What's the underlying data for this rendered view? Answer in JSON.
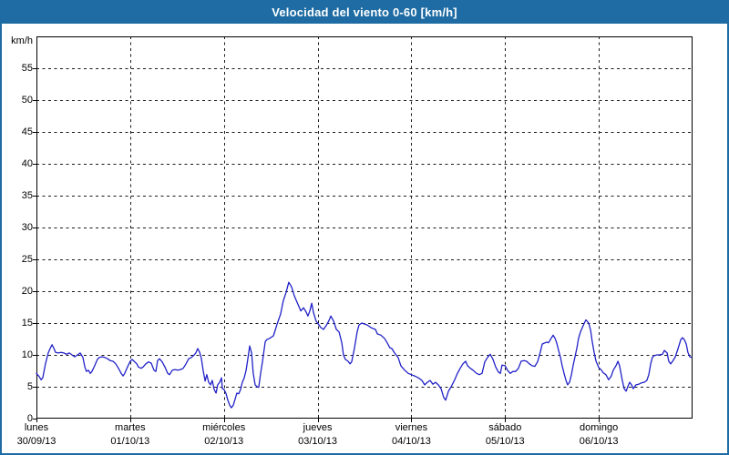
{
  "window": {
    "title": "Velocidad del viento 0-60 [km/h]"
  },
  "colors": {
    "titlebar_bg": "#1e6ca3",
    "window_border": "#1e6ca3",
    "background": "#ffffff",
    "grid": "#1a1a1a",
    "axis_text": "#000000",
    "series_line": "#2121c8"
  },
  "chart_data": {
    "type": "line",
    "title": "Velocidad del viento 0-60 [km/h]",
    "xlabel": "",
    "ylabel": "km/h",
    "ylim": [
      0,
      60
    ],
    "xlim_hours": [
      0,
      168
    ],
    "grid": "dashed",
    "legend_position": "none",
    "y_ticks": [
      0,
      5,
      10,
      15,
      20,
      25,
      30,
      35,
      40,
      45,
      50,
      55
    ],
    "x_ticks_days": [
      {
        "day": "lunes",
        "date": "30/09/13",
        "hour": 0
      },
      {
        "day": "martes",
        "date": "01/10/13",
        "hour": 24
      },
      {
        "day": "miércoles",
        "date": "02/10/13",
        "hour": 48
      },
      {
        "day": "jueves",
        "date": "03/10/13",
        "hour": 72
      },
      {
        "day": "viernes",
        "date": "04/10/13",
        "hour": 96
      },
      {
        "day": "sábado",
        "date": "05/10/13",
        "hour": 120
      },
      {
        "day": "domingo",
        "date": "06/10/13",
        "hour": 144
      }
    ],
    "series": [
      {
        "name": "velocidad del viento",
        "color": "#2121c8",
        "points": [
          [
            0,
            7.1
          ],
          [
            0.7,
            6.6
          ],
          [
            1.2,
            6.1
          ],
          [
            1.6,
            6.4
          ],
          [
            2.3,
            8.6
          ],
          [
            3,
            10.3
          ],
          [
            3.5,
            11
          ],
          [
            4,
            11.6
          ],
          [
            4.4,
            11.1
          ],
          [
            4.9,
            10.4
          ],
          [
            5.6,
            10.3
          ],
          [
            6.3,
            10.4
          ],
          [
            7,
            10.3
          ],
          [
            7.7,
            10.1
          ],
          [
            8.4,
            10.3
          ],
          [
            9.1,
            10
          ],
          [
            9.8,
            9.7
          ],
          [
            10.5,
            10
          ],
          [
            11.2,
            10.3
          ],
          [
            11.9,
            9.6
          ],
          [
            12.4,
            8.1
          ],
          [
            12.8,
            7.4
          ],
          [
            13.3,
            7.6
          ],
          [
            13.8,
            7.1
          ],
          [
            14.2,
            7.4
          ],
          [
            14.9,
            8.3
          ],
          [
            15.6,
            9.3
          ],
          [
            16.1,
            9.6
          ],
          [
            16.8,
            9.7
          ],
          [
            17.5,
            9.6
          ],
          [
            18.2,
            9.4
          ],
          [
            18.9,
            9.1
          ],
          [
            19.6,
            9
          ],
          [
            20.3,
            8.6
          ],
          [
            21,
            7.9
          ],
          [
            21.7,
            7.1
          ],
          [
            22.2,
            6.7
          ],
          [
            22.6,
            7.1
          ],
          [
            23.3,
            8.1
          ],
          [
            24,
            9
          ],
          [
            24.5,
            9.3
          ],
          [
            25,
            9
          ],
          [
            25.7,
            8.6
          ],
          [
            26.1,
            8.1
          ],
          [
            26.8,
            7.9
          ],
          [
            27.3,
            8.1
          ],
          [
            28,
            8.6
          ],
          [
            28.7,
            8.9
          ],
          [
            29.4,
            8.7
          ],
          [
            30.1,
            7.6
          ],
          [
            30.6,
            7.4
          ],
          [
            31,
            9.1
          ],
          [
            31.5,
            9.4
          ],
          [
            32.2,
            8.9
          ],
          [
            32.9,
            8.1
          ],
          [
            33.6,
            7.1
          ],
          [
            34.1,
            6.9
          ],
          [
            34.8,
            7.6
          ],
          [
            35.5,
            7.7
          ],
          [
            36.2,
            7.6
          ],
          [
            36.9,
            7.7
          ],
          [
            37.6,
            7.9
          ],
          [
            38.3,
            8.6
          ],
          [
            39,
            9.4
          ],
          [
            39.7,
            9.6
          ],
          [
            40.4,
            10
          ],
          [
            40.8,
            10.3
          ],
          [
            41.3,
            11
          ],
          [
            41.8,
            10.4
          ],
          [
            42.2,
            9.5
          ],
          [
            42.7,
            7.5
          ],
          [
            43.2,
            5.9
          ],
          [
            43.6,
            6.9
          ],
          [
            44.1,
            5.7
          ],
          [
            44.6,
            5.3
          ],
          [
            45,
            6
          ],
          [
            45.5,
            4.6
          ],
          [
            46,
            4
          ],
          [
            46.4,
            5.3
          ],
          [
            46.9,
            5.7
          ],
          [
            47.4,
            6.4
          ],
          [
            47.6,
            4.7
          ],
          [
            48,
            4.6
          ],
          [
            48.5,
            4
          ],
          [
            49,
            2.9
          ],
          [
            49.5,
            2.1
          ],
          [
            49.9,
            1.7
          ],
          [
            50.4,
            2.1
          ],
          [
            50.9,
            3.1
          ],
          [
            51.3,
            4
          ],
          [
            51.8,
            3.9
          ],
          [
            52.3,
            4.6
          ],
          [
            52.7,
            5.7
          ],
          [
            53.2,
            6.4
          ],
          [
            53.7,
            7.6
          ],
          [
            54.1,
            9.3
          ],
          [
            54.6,
            11.4
          ],
          [
            55.1,
            10.3
          ],
          [
            55.5,
            7.1
          ],
          [
            56,
            5.3
          ],
          [
            56.5,
            5
          ],
          [
            56.9,
            4.9
          ],
          [
            57.4,
            7.1
          ],
          [
            57.9,
            9
          ],
          [
            58.6,
            12.1
          ],
          [
            59,
            12.4
          ],
          [
            59.7,
            12.6
          ],
          [
            60.7,
            13
          ],
          [
            61.6,
            14.8
          ],
          [
            62.5,
            16.4
          ],
          [
            63.2,
            18.5
          ],
          [
            63.9,
            19.8
          ],
          [
            64.6,
            21.4
          ],
          [
            65.3,
            20.7
          ],
          [
            66,
            19.3
          ],
          [
            67,
            17.9
          ],
          [
            67.7,
            16.9
          ],
          [
            68.4,
            17.4
          ],
          [
            69.1,
            16.7
          ],
          [
            69.5,
            16.1
          ],
          [
            70,
            16.9
          ],
          [
            70.5,
            18.1
          ],
          [
            70.9,
            16.7
          ],
          [
            71.6,
            15.3
          ],
          [
            72,
            15
          ],
          [
            72.8,
            14.3
          ],
          [
            73.5,
            14
          ],
          [
            74.2,
            14.6
          ],
          [
            74.9,
            15.4
          ],
          [
            75.4,
            16.1
          ],
          [
            76.1,
            15.3
          ],
          [
            76.8,
            14
          ],
          [
            77.5,
            13.6
          ],
          [
            78.2,
            11.9
          ],
          [
            78.6,
            10
          ],
          [
            79.1,
            9.3
          ],
          [
            79.8,
            9
          ],
          [
            80.3,
            8.6
          ],
          [
            80.7,
            8.9
          ],
          [
            81.4,
            11
          ],
          [
            82.1,
            13.6
          ],
          [
            82.6,
            14.7
          ],
          [
            83.3,
            15
          ],
          [
            84.7,
            14.7
          ],
          [
            85.6,
            14.3
          ],
          [
            86.3,
            14.1
          ],
          [
            86.8,
            14
          ],
          [
            87.3,
            13.3
          ],
          [
            88.2,
            13.1
          ],
          [
            89.1,
            12.6
          ],
          [
            89.8,
            11.9
          ],
          [
            90.5,
            11.1
          ],
          [
            91,
            11
          ],
          [
            91.7,
            10.3
          ],
          [
            92.6,
            9.6
          ],
          [
            93.3,
            8.3
          ],
          [
            94.3,
            7.6
          ],
          [
            95.2,
            7.1
          ],
          [
            96,
            6.9
          ],
          [
            96.8,
            6.7
          ],
          [
            97.8,
            6.4
          ],
          [
            98.7,
            6
          ],
          [
            99.4,
            5.3
          ],
          [
            100.1,
            5.7
          ],
          [
            100.8,
            6
          ],
          [
            101.5,
            5.4
          ],
          [
            102.2,
            5.7
          ],
          [
            102.9,
            5.3
          ],
          [
            103.6,
            4.7
          ],
          [
            104.3,
            3.3
          ],
          [
            104.8,
            2.9
          ],
          [
            105.5,
            4.3
          ],
          [
            106.2,
            5
          ],
          [
            107.1,
            6.1
          ],
          [
            107.8,
            7.1
          ],
          [
            108.5,
            7.9
          ],
          [
            109.2,
            8.6
          ],
          [
            109.9,
            9
          ],
          [
            110.4,
            8.3
          ],
          [
            111.1,
            7.9
          ],
          [
            111.8,
            7.6
          ],
          [
            112.7,
            7.1
          ],
          [
            113.4,
            6.9
          ],
          [
            114.1,
            7.1
          ],
          [
            114.8,
            8.9
          ],
          [
            115.5,
            9.6
          ],
          [
            116.2,
            10.1
          ],
          [
            116.9,
            9.3
          ],
          [
            117.6,
            8.1
          ],
          [
            118.3,
            7.3
          ],
          [
            118.8,
            7.1
          ],
          [
            119.2,
            8.4
          ],
          [
            120,
            8.3
          ],
          [
            120.6,
            7.6
          ],
          [
            121.3,
            7.1
          ],
          [
            122,
            7.4
          ],
          [
            122.7,
            7.4
          ],
          [
            123.4,
            7.9
          ],
          [
            124.1,
            9
          ],
          [
            124.8,
            9.1
          ],
          [
            125.5,
            9
          ],
          [
            126.2,
            8.6
          ],
          [
            126.9,
            8.3
          ],
          [
            127.6,
            8.2
          ],
          [
            128.3,
            8.9
          ],
          [
            129,
            10.4
          ],
          [
            129.5,
            11.7
          ],
          [
            130.2,
            11.9
          ],
          [
            130.7,
            12
          ],
          [
            131.1,
            11.9
          ],
          [
            131.6,
            12.4
          ],
          [
            132.3,
            13.1
          ],
          [
            132.8,
            12.6
          ],
          [
            133.2,
            11.9
          ],
          [
            133.7,
            10.7
          ],
          [
            134.2,
            9.6
          ],
          [
            134.6,
            8.3
          ],
          [
            135.1,
            7.1
          ],
          [
            135.6,
            6
          ],
          [
            136,
            5.3
          ],
          [
            136.5,
            5.7
          ],
          [
            137,
            6.9
          ],
          [
            137.4,
            8.3
          ],
          [
            137.9,
            9.7
          ],
          [
            138.4,
            11.1
          ],
          [
            138.8,
            12.6
          ],
          [
            139.3,
            13.6
          ],
          [
            139.8,
            14.3
          ],
          [
            140.2,
            14.9
          ],
          [
            140.7,
            15.5
          ],
          [
            141.4,
            15
          ],
          [
            141.9,
            13.9
          ],
          [
            142.3,
            12.1
          ],
          [
            142.8,
            10.4
          ],
          [
            143.3,
            9
          ],
          [
            144,
            8
          ],
          [
            144.7,
            7.6
          ],
          [
            145.1,
            7.2
          ],
          [
            145.8,
            6.9
          ],
          [
            146.5,
            6.1
          ],
          [
            147.2,
            6.7
          ],
          [
            147.7,
            7.6
          ],
          [
            148.4,
            8.3
          ],
          [
            148.9,
            9
          ],
          [
            149.3,
            8.3
          ],
          [
            150,
            6
          ],
          [
            150.5,
            4.7
          ],
          [
            151,
            4.3
          ],
          [
            151.4,
            5
          ],
          [
            151.9,
            5.7
          ],
          [
            152.4,
            5.3
          ],
          [
            152.8,
            4.7
          ],
          [
            153.5,
            5.3
          ],
          [
            154.2,
            5.4
          ],
          [
            154.9,
            5.6
          ],
          [
            155.6,
            5.7
          ],
          [
            156.3,
            6
          ],
          [
            156.8,
            6.9
          ],
          [
            157.3,
            8.6
          ],
          [
            157.7,
            9.6
          ],
          [
            158.2,
            9.9
          ],
          [
            158.9,
            10
          ],
          [
            159.6,
            10
          ],
          [
            160.3,
            10.1
          ],
          [
            160.8,
            10.7
          ],
          [
            161.5,
            10.3
          ],
          [
            161.9,
            9
          ],
          [
            162.4,
            8.6
          ],
          [
            162.9,
            9
          ],
          [
            163.6,
            9.7
          ],
          [
            164.3,
            11
          ],
          [
            165,
            12.4
          ],
          [
            165.4,
            12.7
          ],
          [
            165.9,
            12.4
          ],
          [
            166.4,
            11.7
          ],
          [
            166.8,
            10.4
          ],
          [
            167.3,
            9.7
          ],
          [
            167.8,
            9.6
          ]
        ]
      }
    ]
  }
}
